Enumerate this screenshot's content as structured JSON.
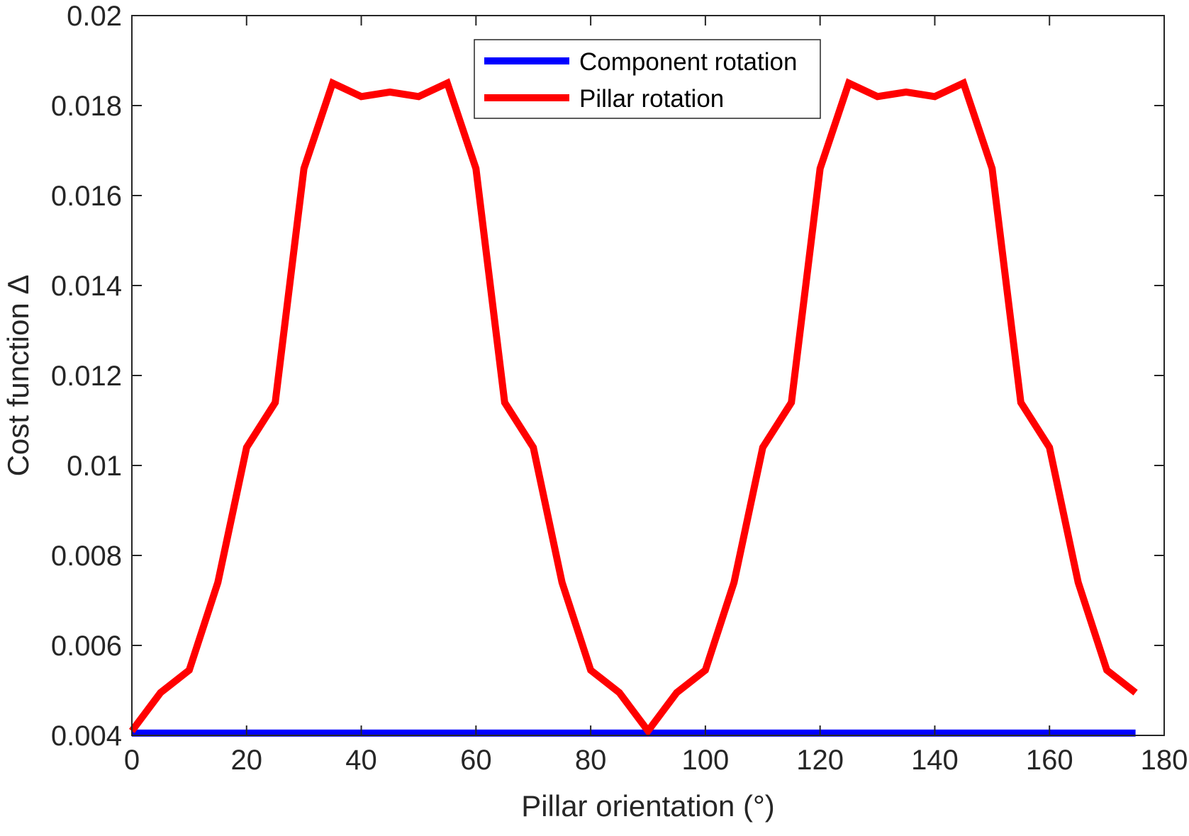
{
  "chart_data": {
    "type": "line",
    "title": "",
    "xlabel": "Pillar orientation (°)",
    "ylabel": "Cost function Δ",
    "xlim": [
      0,
      180
    ],
    "ylim": [
      0.004,
      0.02
    ],
    "xticks": [
      "0",
      "20",
      "40",
      "60",
      "80",
      "100",
      "120",
      "140",
      "160",
      "180"
    ],
    "yticks": [
      "0.004",
      "0.006",
      "0.008",
      "0.01",
      "0.012",
      "0.014",
      "0.016",
      "0.018",
      "0.02"
    ],
    "grid": false,
    "legend_position": "top-center",
    "x": [
      0,
      5,
      10,
      15,
      20,
      25,
      30,
      35,
      40,
      45,
      50,
      55,
      60,
      65,
      70,
      75,
      80,
      85,
      90,
      95,
      100,
      105,
      110,
      115,
      120,
      125,
      130,
      135,
      140,
      145,
      150,
      155,
      160,
      165,
      170,
      175
    ],
    "series": [
      {
        "name": "Component rotation",
        "color": "#0000ff",
        "values": [
          0.00405,
          0.00405,
          0.00405,
          0.00405,
          0.00405,
          0.00405,
          0.00405,
          0.00405,
          0.00405,
          0.00405,
          0.00405,
          0.00405,
          0.00405,
          0.00405,
          0.00405,
          0.00405,
          0.00405,
          0.00405,
          0.00405,
          0.00405,
          0.00405,
          0.00405,
          0.00405,
          0.00405,
          0.00405,
          0.00405,
          0.00405,
          0.00405,
          0.00405,
          0.00405,
          0.00405,
          0.00405,
          0.00405,
          0.00405,
          0.00405,
          0.00405
        ]
      },
      {
        "name": "Pillar rotation",
        "color": "#ff0000",
        "values": [
          0.0041,
          0.00495,
          0.00545,
          0.0074,
          0.0104,
          0.0114,
          0.0166,
          0.0185,
          0.0182,
          0.0183,
          0.0182,
          0.0185,
          0.0166,
          0.0114,
          0.0104,
          0.0074,
          0.00545,
          0.00495,
          0.0041,
          0.00495,
          0.00545,
          0.0074,
          0.0104,
          0.0114,
          0.0166,
          0.0185,
          0.0182,
          0.0183,
          0.0182,
          0.0185,
          0.0166,
          0.0114,
          0.0104,
          0.0074,
          0.00545,
          0.00495
        ]
      }
    ]
  }
}
